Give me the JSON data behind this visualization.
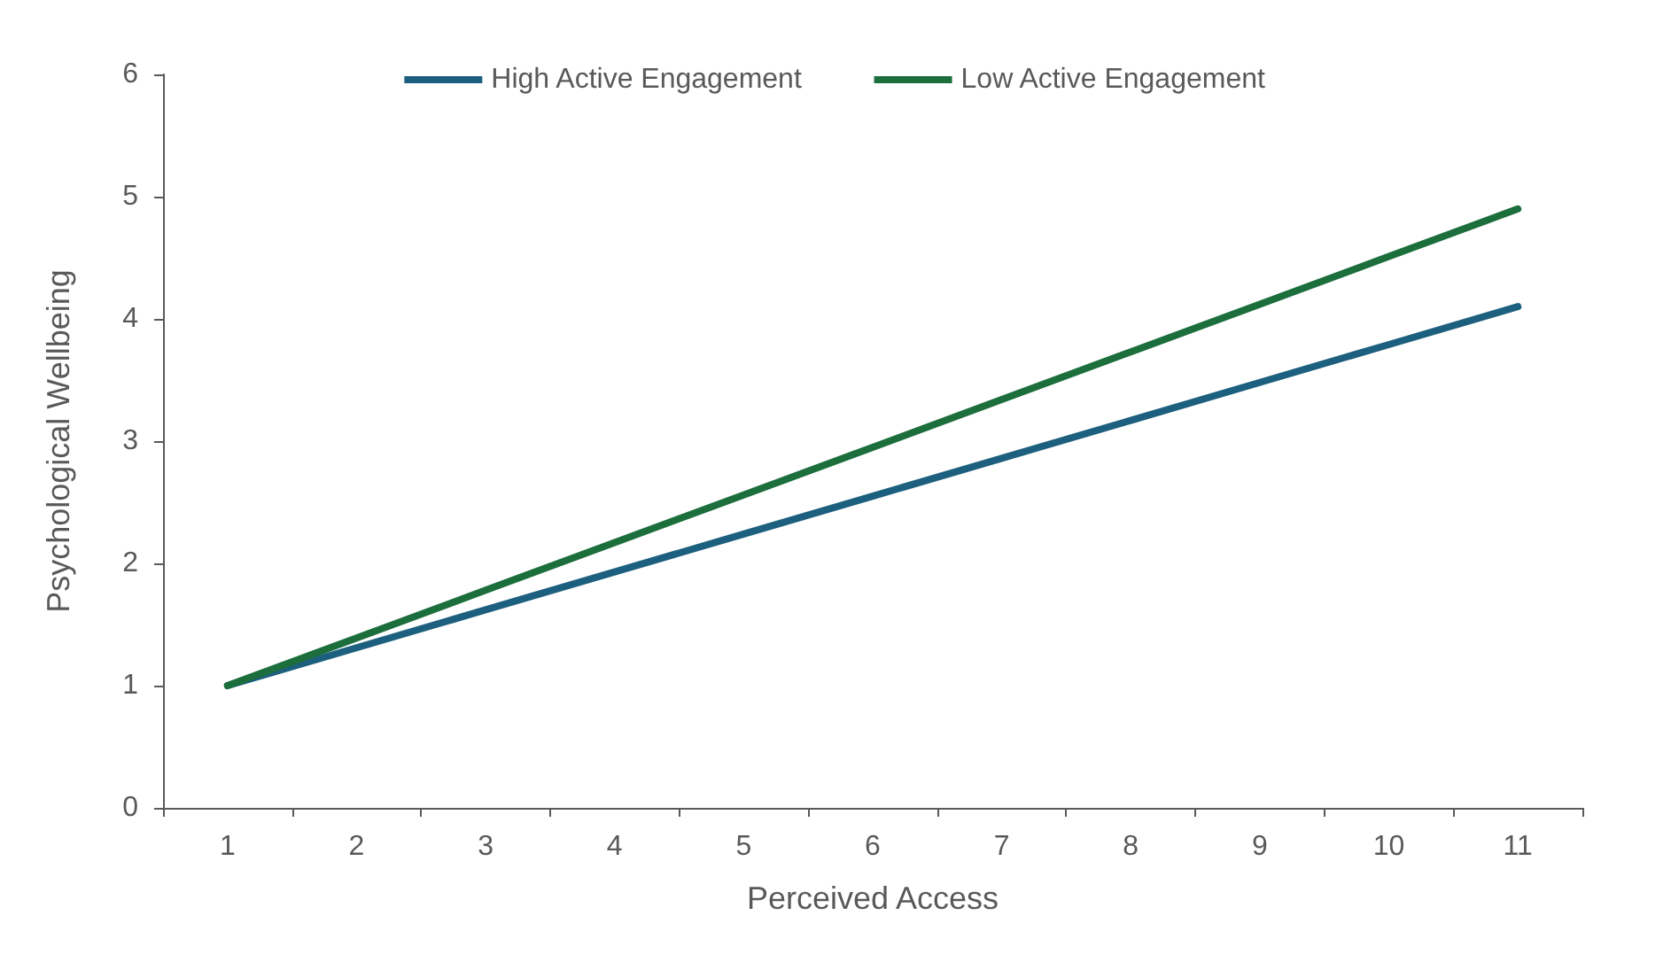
{
  "chart_data": {
    "type": "line",
    "xlabel": "Perceived Access",
    "ylabel": "Psychological Wellbeing",
    "categories": [
      "1",
      "2",
      "3",
      "4",
      "5",
      "6",
      "7",
      "8",
      "9",
      "10",
      "11"
    ],
    "series": [
      {
        "name": "High Active Engagement",
        "color": "#1d5f7e",
        "values": [
          1,
          1.31,
          1.62,
          1.93,
          2.24,
          2.55,
          2.86,
          3.17,
          3.48,
          3.79,
          4.1
        ]
      },
      {
        "name": "Low Active Engagement",
        "color": "#1c6e3c",
        "values": [
          1,
          1.39,
          1.78,
          2.17,
          2.56,
          2.95,
          3.34,
          3.73,
          4.12,
          4.51,
          4.9
        ]
      }
    ],
    "ylim": [
      0,
      6
    ],
    "yticks": [
      0,
      1,
      2,
      3,
      4,
      5,
      6
    ],
    "grid": false,
    "legend": "top",
    "marker": "none",
    "line_style": "solid"
  }
}
